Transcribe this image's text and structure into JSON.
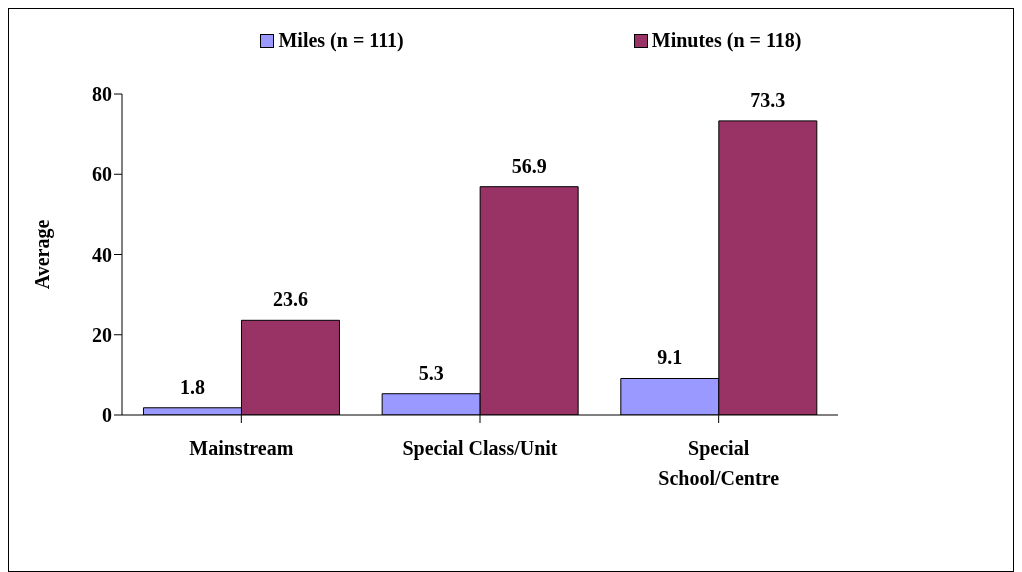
{
  "chart_data": {
    "type": "bar",
    "ylabel": "Average",
    "categories": [
      "Mainstream",
      "Special Class/Unit",
      "Special School/Centre"
    ],
    "series": [
      {
        "name": "Miles (n = 111)",
        "color": "#9999ff",
        "values": [
          1.8,
          5.3,
          9.1
        ]
      },
      {
        "name": "Minutes (n = 118)",
        "color": "#993366",
        "values": [
          23.6,
          56.9,
          73.3
        ]
      }
    ],
    "ylim": [
      0,
      80
    ],
    "yticks": [
      0,
      20,
      40,
      60,
      80
    ],
    "grid": false,
    "legend": "top",
    "data_labels": true
  }
}
